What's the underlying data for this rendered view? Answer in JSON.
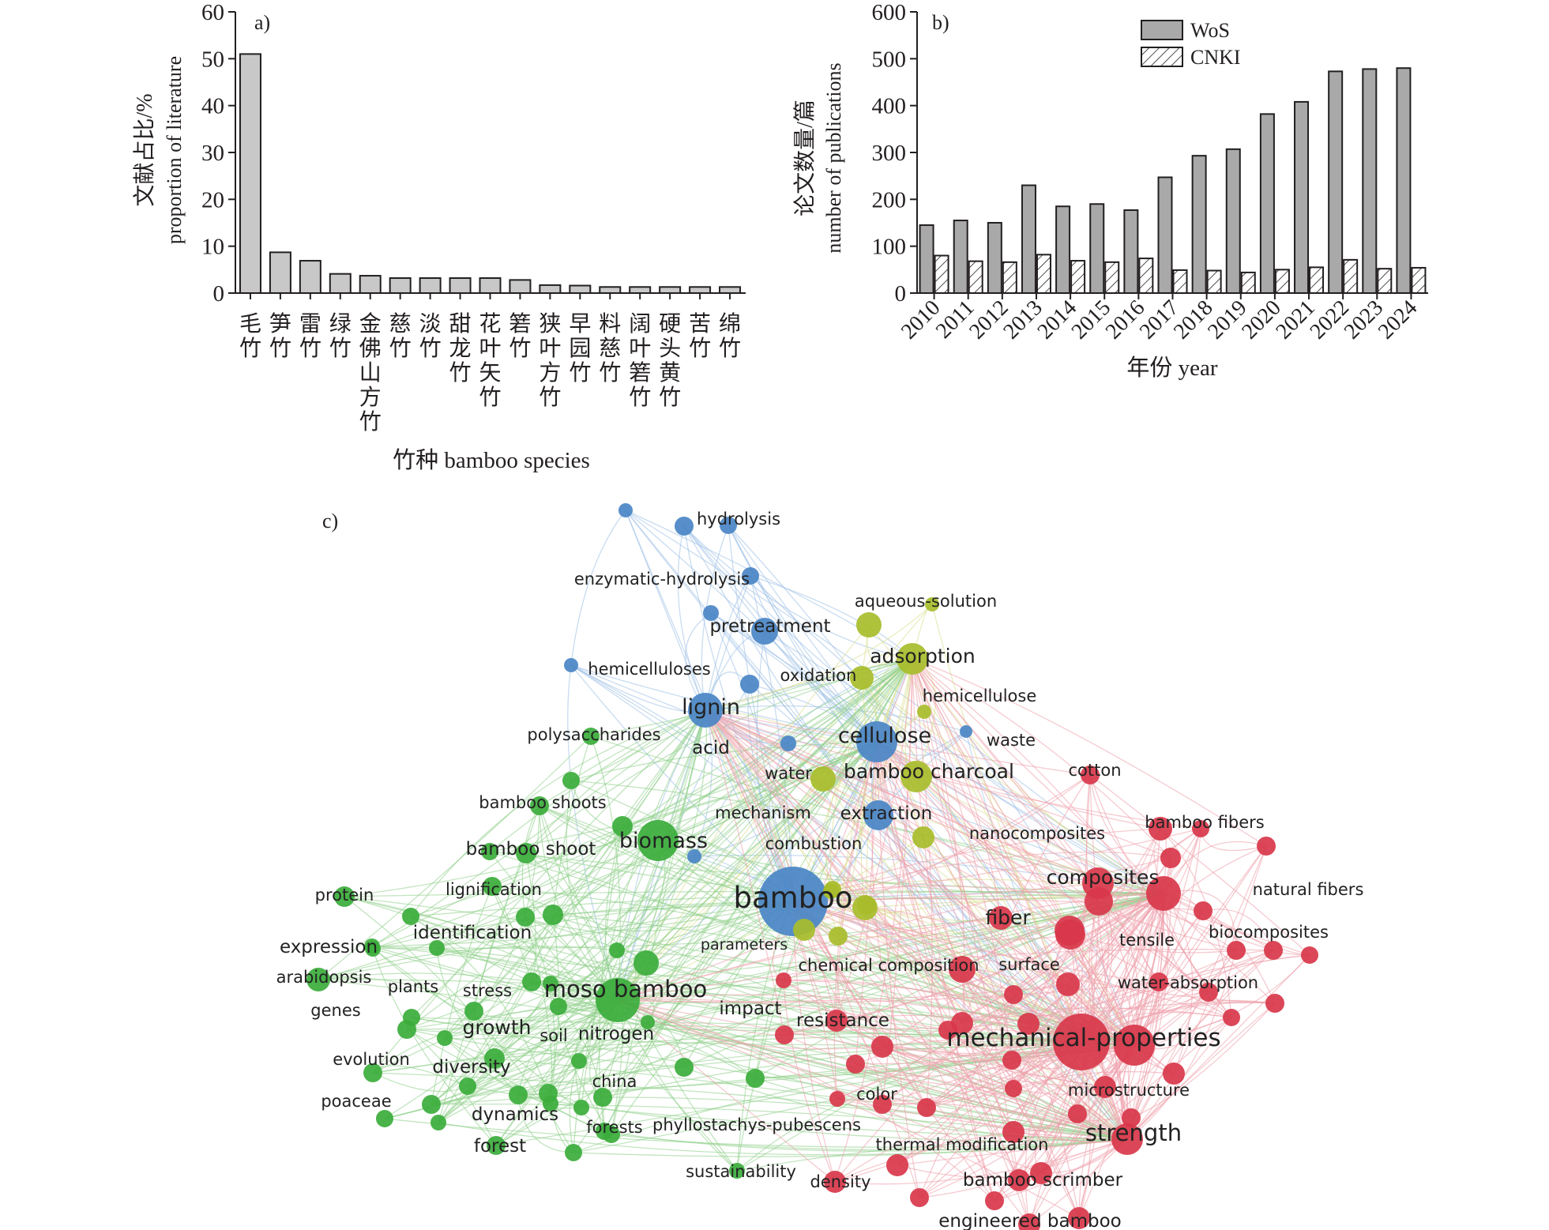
{
  "chart_data": [
    {
      "type": "bar",
      "panel_label": "a)",
      "categories": [
        "毛竹",
        "笋竹",
        "雷竹",
        "绿竹",
        "金佛山方竹",
        "慈竹",
        "淡竹",
        "甜龙竹",
        "花叶矢竹",
        "箬竹",
        "狭叶方竹",
        "早园竹",
        "料慈竹",
        "阔叶箬竹",
        "硬头黄竹",
        "苦竹",
        "绵竹"
      ],
      "values": [
        51,
        8.7,
        6.9,
        4.1,
        3.7,
        3.2,
        3.2,
        3.2,
        3.2,
        2.8,
        1.7,
        1.6,
        1.3,
        1.3,
        1.3,
        1.3,
        1.3
      ],
      "xlabel": "竹种 bamboo species",
      "ylabel_zh": "文献占比/%",
      "ylabel_en": "proportion of literature",
      "ylim": [
        0,
        60
      ],
      "yticks": [
        "0",
        "10",
        "20",
        "30",
        "40",
        "50",
        "60"
      ],
      "color": "#c8c8c8"
    },
    {
      "type": "bar",
      "panel_label": "b)",
      "categories": [
        "2010",
        "2011",
        "2012",
        "2013",
        "2014",
        "2015",
        "2016",
        "2017",
        "2018",
        "2019",
        "2020",
        "2021",
        "2022",
        "2023",
        "2024"
      ],
      "series": [
        {
          "name": "WoS",
          "values": [
            145,
            155,
            150,
            230,
            185,
            190,
            177,
            247,
            293,
            307,
            382,
            408,
            473,
            478,
            480
          ],
          "color": "#a9a9a9"
        },
        {
          "name": "CNKI",
          "values": [
            80,
            68,
            66,
            82,
            69,
            66,
            74,
            49,
            48,
            44,
            50,
            55,
            71,
            52,
            54
          ],
          "pattern": "hatch"
        }
      ],
      "xlabel": "年份 year",
      "ylabel_zh": "论文数量/篇",
      "ylabel_en": "number of publications",
      "ylim": [
        0,
        600
      ],
      "yticks": [
        "0",
        "100",
        "200",
        "300",
        "400",
        "500",
        "600"
      ],
      "legend_position": "top-center"
    }
  ],
  "network": {
    "panel_label": "c)",
    "colors": {
      "blue": "#4a86c6",
      "green": "#3bac3b",
      "yellow": "#a8bd2b",
      "red": "#d8374a"
    },
    "link_colors": {
      "blue": "#9cc0e6",
      "green": "#8fd08a",
      "yellow": "#d9df8c",
      "red": "#eea0ab"
    },
    "labels": [
      "hydrolysis",
      "enzymatic-hydrolysis",
      "pretreatment",
      "hemicelluloses",
      "lignin",
      "acid",
      "cellulose",
      "aqueous-solution",
      "adsorption",
      "oxidation",
      "hemicellulose",
      "waste",
      "bamboo charcoal",
      "water",
      "mechanism",
      "extraction",
      "combustion",
      "polysaccharides",
      "bamboo shoots",
      "bamboo shoot",
      "biomass",
      "lignification",
      "protein",
      "identification",
      "expression",
      "arabidopsis",
      "plants",
      "stress",
      "genes",
      "moso bamboo",
      "growth",
      "soil",
      "nitrogen",
      "evolution",
      "diversity",
      "china",
      "poaceae",
      "dynamics",
      "forests",
      "forest",
      "phyllostachys-pubescens",
      "sustainability",
      "bamboo",
      "parameters",
      "chemical composition",
      "impact",
      "cotton",
      "bamboo fibers",
      "nanocomposites",
      "composites",
      "natural fibers",
      "fiber",
      "tensile",
      "biocomposites",
      "surface",
      "water-absorption",
      "resistance",
      "mechanical-properties",
      "microstructure",
      "color",
      "strength",
      "thermal modification",
      "density",
      "bamboo scrimber",
      "engineered bamboo"
    ]
  }
}
